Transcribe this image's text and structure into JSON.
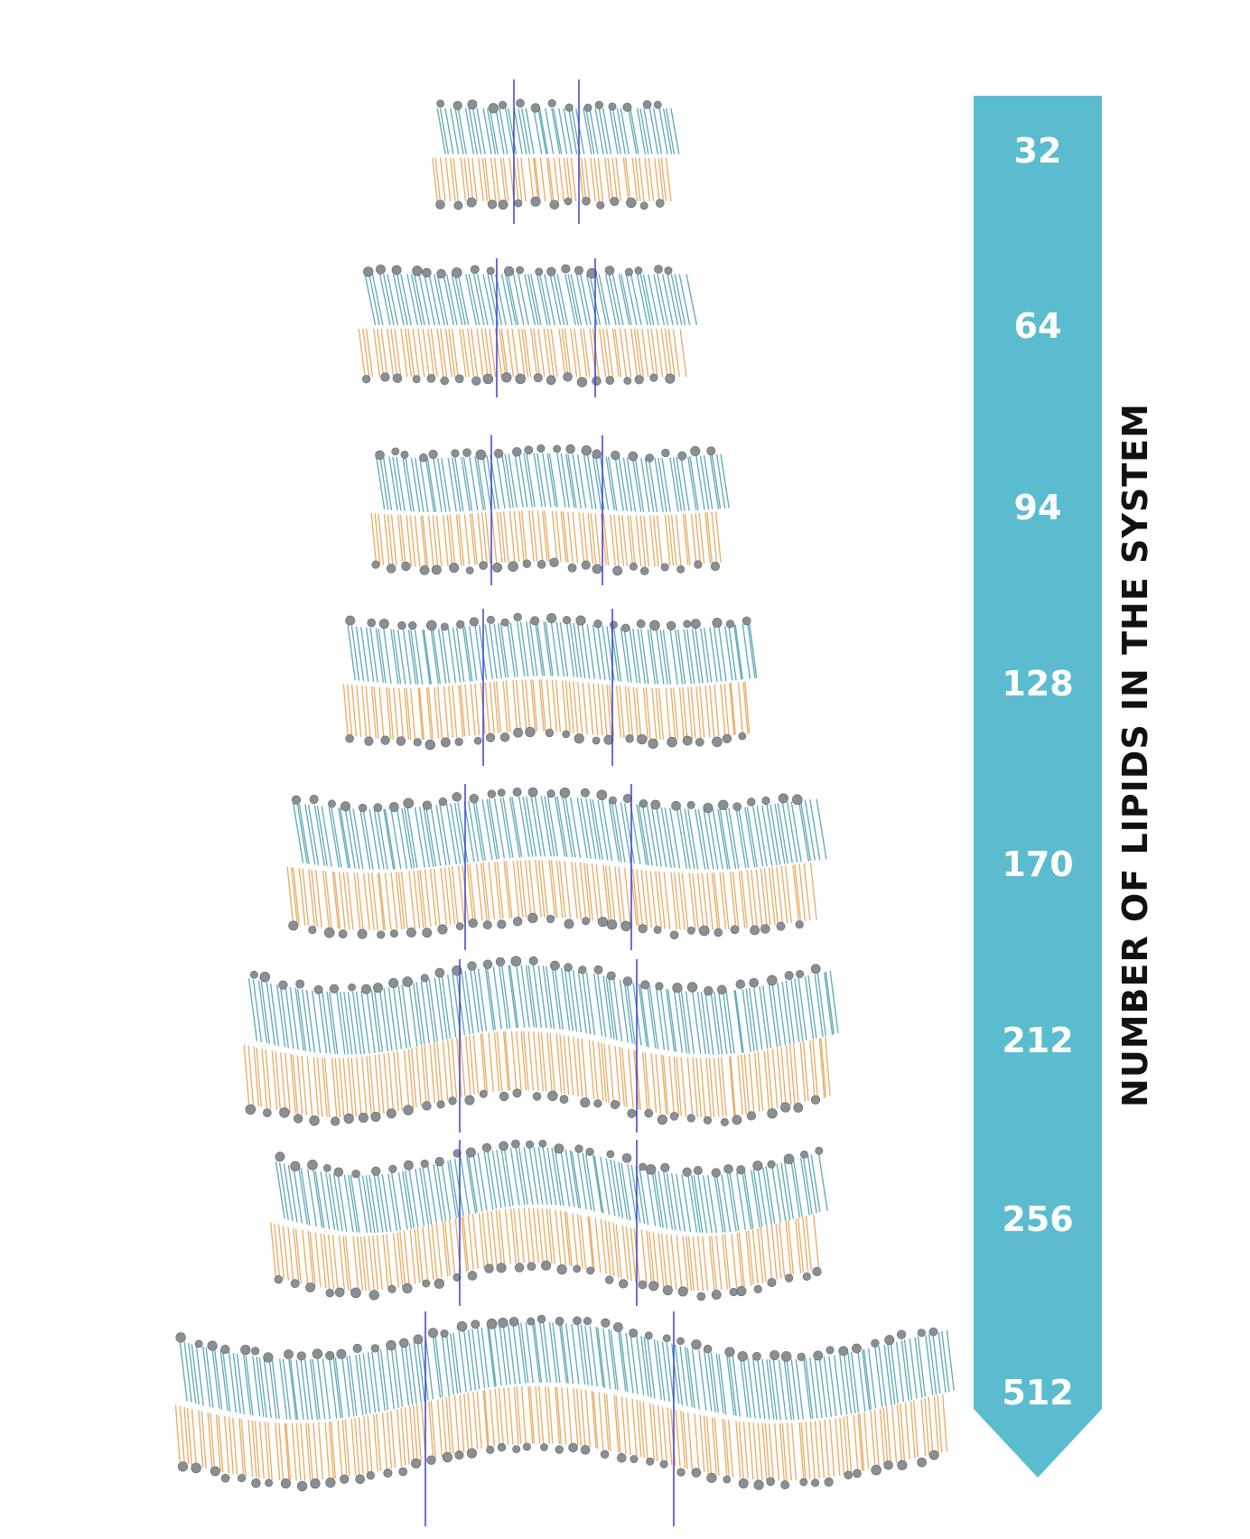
{
  "figure": {
    "axis_title": "NUMBER OF LIPIDS IN THE SYSTEM",
    "systems": [
      {
        "lipids": "32",
        "label": "32",
        "undulation": 0.0,
        "box_widths": 3
      },
      {
        "lipids": "64",
        "label": "64",
        "undulation": 0.0,
        "box_widths": 3
      },
      {
        "lipids": "94",
        "label": "94",
        "undulation": 0.15,
        "box_widths": 3
      },
      {
        "lipids": "128",
        "label": "128",
        "undulation": 0.25,
        "box_widths": 3
      },
      {
        "lipids": "170",
        "label": "170",
        "undulation": 0.35,
        "box_widths": 3
      },
      {
        "lipids": "212",
        "label": "212",
        "undulation": 0.7,
        "box_widths": 3
      },
      {
        "lipids": "256",
        "label": "256",
        "undulation": 0.8,
        "box_widths": 3
      },
      {
        "lipids": "512",
        "label": "512",
        "undulation": 1.0,
        "box_widths": 3
      }
    ]
  },
  "colors": {
    "upper_leaflet": "#4a9fad",
    "lower_leaflet": "#e7a04f",
    "headgroup": "#8a8f94",
    "box_line": "#3b3fd6",
    "arrow": "#5bbccf"
  }
}
